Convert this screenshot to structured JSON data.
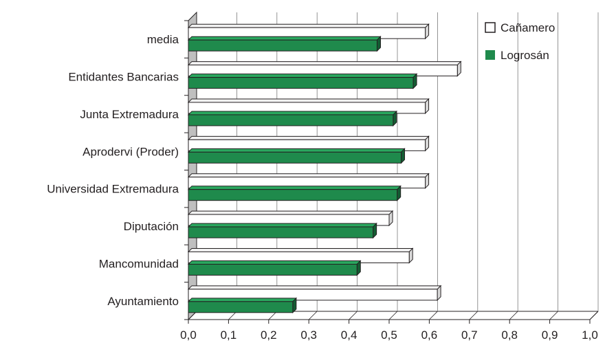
{
  "chart_data": {
    "type": "bar",
    "orientation": "horizontal",
    "three_d": true,
    "categories": [
      "Ayuntamiento",
      "Mancomunidad",
      "Diputación",
      "Universidad Extremadura",
      "Aprodervi (Proder)",
      "Junta Extremadura",
      "Entidantes Bancarias",
      "media"
    ],
    "series": [
      {
        "name": "Cañamero",
        "values": [
          0.62,
          0.55,
          0.5,
          0.59,
          0.59,
          0.59,
          0.67,
          0.59
        ]
      },
      {
        "name": "Logrosán",
        "values": [
          0.26,
          0.42,
          0.46,
          0.52,
          0.53,
          0.51,
          0.56,
          0.47
        ]
      }
    ],
    "xlim": [
      0,
      1.0
    ],
    "xticks": [
      "0,0",
      "0,1",
      "0,2",
      "0,3",
      "0,4",
      "0,5",
      "0,6",
      "0,7",
      "0,8",
      "0,9",
      "1,0"
    ],
    "grid": true,
    "legend_position": "top-right",
    "colors": {
      "Cañamero": "#ffffff",
      "Logrosán": "#1f8a4c",
      "wall": "#bfbfbf",
      "outline": "#231f20"
    },
    "title": "",
    "xlabel": "",
    "ylabel": ""
  }
}
